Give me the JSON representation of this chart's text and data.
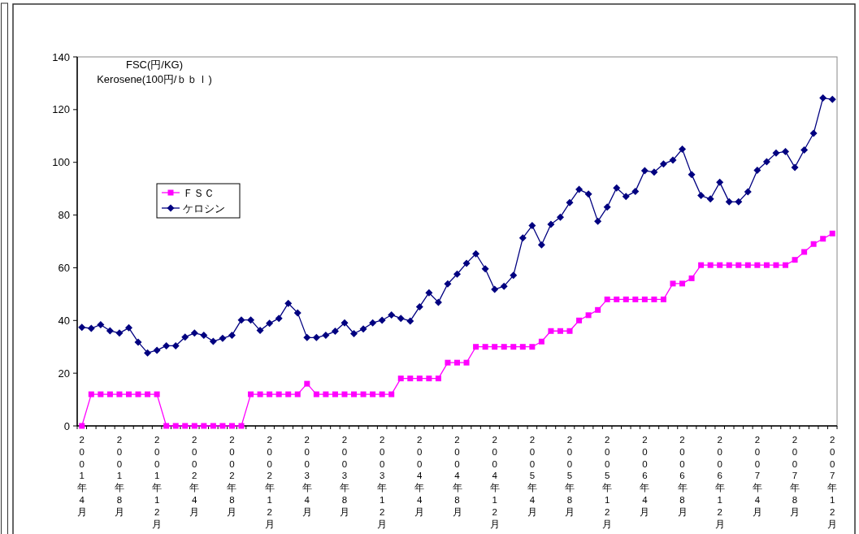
{
  "chart_data": {
    "type": "line",
    "ylabel": "FSC(円/KG)\nKerosene(100円/ｂｂｌ)",
    "categories": [
      "2001年4月",
      null,
      null,
      null,
      "2001年8月",
      null,
      null,
      null,
      "2001年12月",
      null,
      null,
      null,
      "2002年4月",
      null,
      null,
      null,
      "2002年8月",
      null,
      null,
      null,
      "2002年12月",
      null,
      null,
      null,
      "2003年4月",
      null,
      null,
      null,
      "2003年8月",
      null,
      null,
      null,
      "2003年12月",
      null,
      null,
      null,
      "2004年4月",
      null,
      null,
      null,
      "2004年8月",
      null,
      null,
      null,
      "2004年12月",
      null,
      null,
      null,
      "2005年4月",
      null,
      null,
      null,
      "2005年8月",
      null,
      null,
      null,
      "2005年12月",
      null,
      null,
      null,
      "2006年4月",
      null,
      null,
      null,
      "2006年8月",
      null,
      null,
      null,
      "2006年12月",
      null,
      null,
      null,
      "2007年4月",
      null,
      null,
      null,
      "2007年8月",
      null,
      null,
      null,
      "2007年12月"
    ],
    "series": [
      {
        "name": "ＦＳＣ",
        "color": "#ff00ff",
        "marker": "square",
        "values": [
          0,
          12,
          12,
          12,
          12,
          12,
          12,
          12,
          12,
          0,
          0,
          0,
          0,
          0,
          0,
          0,
          0,
          0,
          12,
          12,
          12,
          12,
          12,
          12,
          16,
          12,
          12,
          12,
          12,
          12,
          12,
          12,
          12,
          12,
          18,
          18,
          18,
          18,
          18,
          24,
          24,
          24,
          30,
          30,
          30,
          30,
          30,
          30,
          30,
          32,
          36,
          36,
          36,
          40,
          42,
          44,
          48,
          48,
          48,
          48,
          48,
          48,
          48,
          54,
          54,
          56,
          61,
          61,
          61,
          61,
          61,
          61,
          61,
          61,
          61,
          61,
          63,
          66,
          69,
          71,
          73
        ]
      },
      {
        "name": "ケロシン",
        "color": "#000080",
        "marker": "diamond",
        "values": [
          37.4,
          37.0,
          38.4,
          36.1,
          35.2,
          37.2,
          31.8,
          27.7,
          28.7,
          30.4,
          30.4,
          33.7,
          35.2,
          34.4,
          32.1,
          33.2,
          34.4,
          40.2,
          40.2,
          36.2,
          38.9,
          40.8,
          46.5,
          42.9,
          33.5,
          33.5,
          34.4,
          35.9,
          39.1,
          35.0,
          36.8,
          39.1,
          40.1,
          42.1,
          40.8,
          39.8,
          45.2,
          50.5,
          46.9,
          53.9,
          57.6,
          61.7,
          65.3,
          59.6,
          51.8,
          53.0,
          57.1,
          71.3,
          76,
          68.7,
          76.5,
          79.2,
          84.7,
          89.7,
          88.0,
          77.6,
          83.0,
          90.3,
          87.0,
          89.0,
          96.8,
          96.3,
          99.4,
          100.8,
          105.0,
          95.4,
          87.4,
          86.1,
          92.4,
          85.0,
          85.0,
          88.8,
          97.0,
          100.2,
          103.5,
          104.1,
          98.1,
          104.7,
          111.0,
          124.4,
          123.9
        ]
      }
    ],
    "ylim": [
      0,
      140
    ],
    "yticks": [
      0,
      20,
      40,
      60,
      80,
      100,
      120,
      140
    ],
    "legend": "left"
  }
}
